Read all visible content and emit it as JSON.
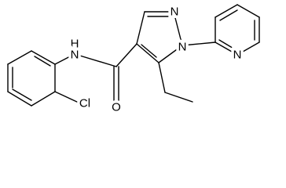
{
  "atoms": [
    "H",
    "N",
    "O",
    "Cl",
    "N",
    "N",
    "N"
  ]
}
